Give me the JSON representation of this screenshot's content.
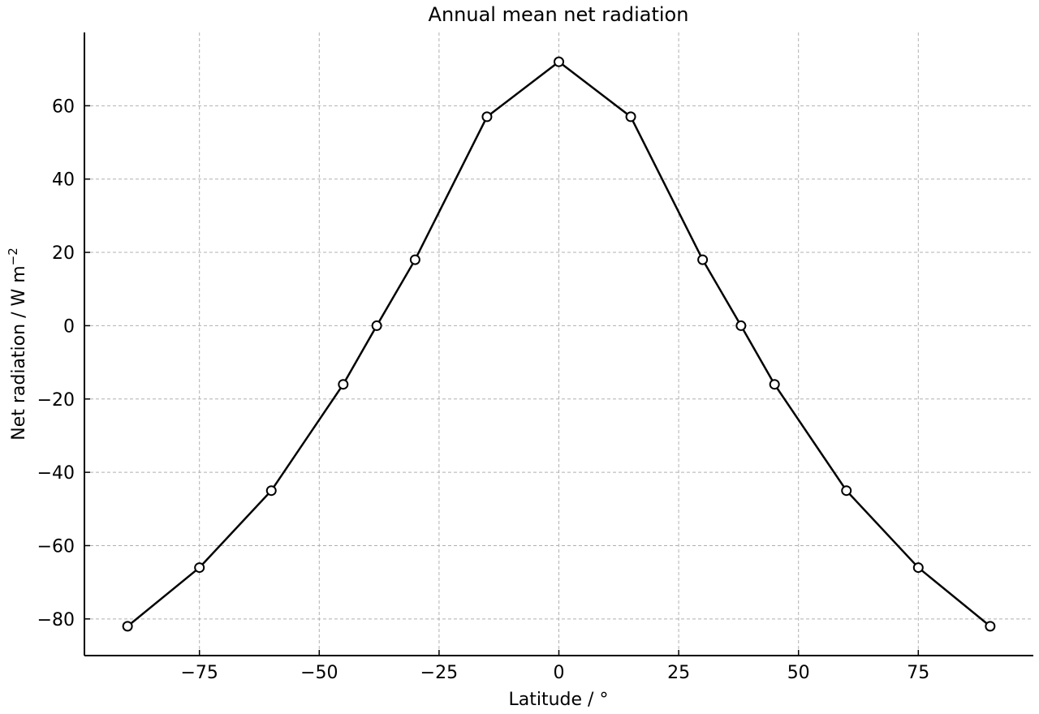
{
  "chart_data": {
    "type": "line",
    "title": "Annual mean net radiation",
    "xlabel": "Latitude / °",
    "ylabel_main": "Net radiation / W m",
    "ylabel_exp": "−2",
    "xlim": [
      -99,
      99
    ],
    "ylim": [
      -90,
      80
    ],
    "grid": true,
    "x_ticks": [
      -75,
      -50,
      -25,
      0,
      25,
      50,
      75
    ],
    "x_tick_labels": [
      "−75",
      "−50",
      "−25",
      "0",
      "25",
      "50",
      "75"
    ],
    "y_ticks": [
      -80,
      -60,
      -40,
      -20,
      0,
      20,
      40,
      60
    ],
    "y_tick_labels": [
      "−80",
      "−60",
      "−40",
      "−20",
      "0",
      "20",
      "40",
      "60"
    ],
    "series": [
      {
        "color": "#000000",
        "marker": "open-circle",
        "x": [
          -90,
          -75,
          -60,
          -45,
          -38,
          -30,
          -15,
          0,
          15,
          30,
          38,
          45,
          60,
          75,
          90
        ],
        "y": [
          -82,
          -66,
          -45,
          -16,
          0,
          18,
          57,
          72,
          57,
          18,
          0,
          -16,
          -45,
          -66,
          -82
        ]
      }
    ]
  }
}
